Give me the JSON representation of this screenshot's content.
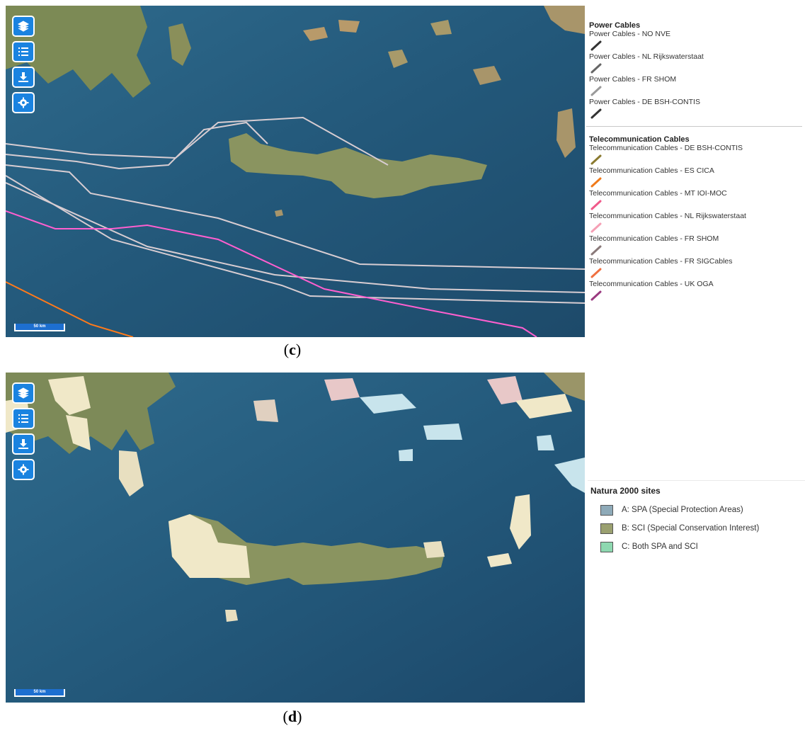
{
  "panel_c": {
    "caption_open": "(",
    "caption_letter": "c",
    "caption_close": ")",
    "scalebar_label": "50 km",
    "tools": [
      {
        "icon": "layers-icon"
      },
      {
        "icon": "list-icon"
      },
      {
        "icon": "download-icon"
      },
      {
        "icon": "gear-icon"
      }
    ],
    "legend": {
      "power_title": "Power Cables",
      "power_items": [
        {
          "label": "Power Cables - NO NVE",
          "color": "#333333"
        },
        {
          "label": "Power Cables - NL Rijkswaterstaat",
          "color": "#666666"
        },
        {
          "label": "Power Cables - FR SHOM",
          "color": "#9a9a9a"
        },
        {
          "label": "Power Cables - DE BSH-CONTIS",
          "color": "#333333"
        }
      ],
      "telecom_title": "Telecommunication Cables",
      "telecom_items": [
        {
          "label": "Telecommunication Cables - DE BSH-CONTIS",
          "color": "#8a7a30"
        },
        {
          "label": "Telecommunication Cables - ES CICA",
          "color": "#f07a1a"
        },
        {
          "label": "Telecommunication Cables - MT IOI-MOC",
          "color": "#f05a8a"
        },
        {
          "label": "Telecommunication Cables - NL Rijkswaterstaat",
          "color": "#f5a0b5"
        },
        {
          "label": "Telecommunication Cables - FR SHOM",
          "color": "#8a7a7a"
        },
        {
          "label": "Telecommunication Cables - FR SIGCables",
          "color": "#f07040"
        },
        {
          "label": "Telecommunication Cables - UK OGA",
          "color": "#9a3a80"
        }
      ]
    }
  },
  "panel_d": {
    "caption_open": "(",
    "caption_letter": "d",
    "caption_close": ")",
    "scalebar_label": "50 km",
    "tools": [
      {
        "icon": "layers-icon"
      },
      {
        "icon": "list-icon"
      },
      {
        "icon": "download-icon"
      },
      {
        "icon": "gear-icon"
      }
    ],
    "legend": {
      "title": "Natura 2000 sites",
      "items": [
        {
          "label": "A: SPA (Special Protection Areas)",
          "color": "#8eaab8"
        },
        {
          "label": "B: SCI (Special Conservation Interest)",
          "color": "#9aa070"
        },
        {
          "label": "C: Both SPA and SCI",
          "color": "#8ed8b0"
        }
      ]
    }
  }
}
